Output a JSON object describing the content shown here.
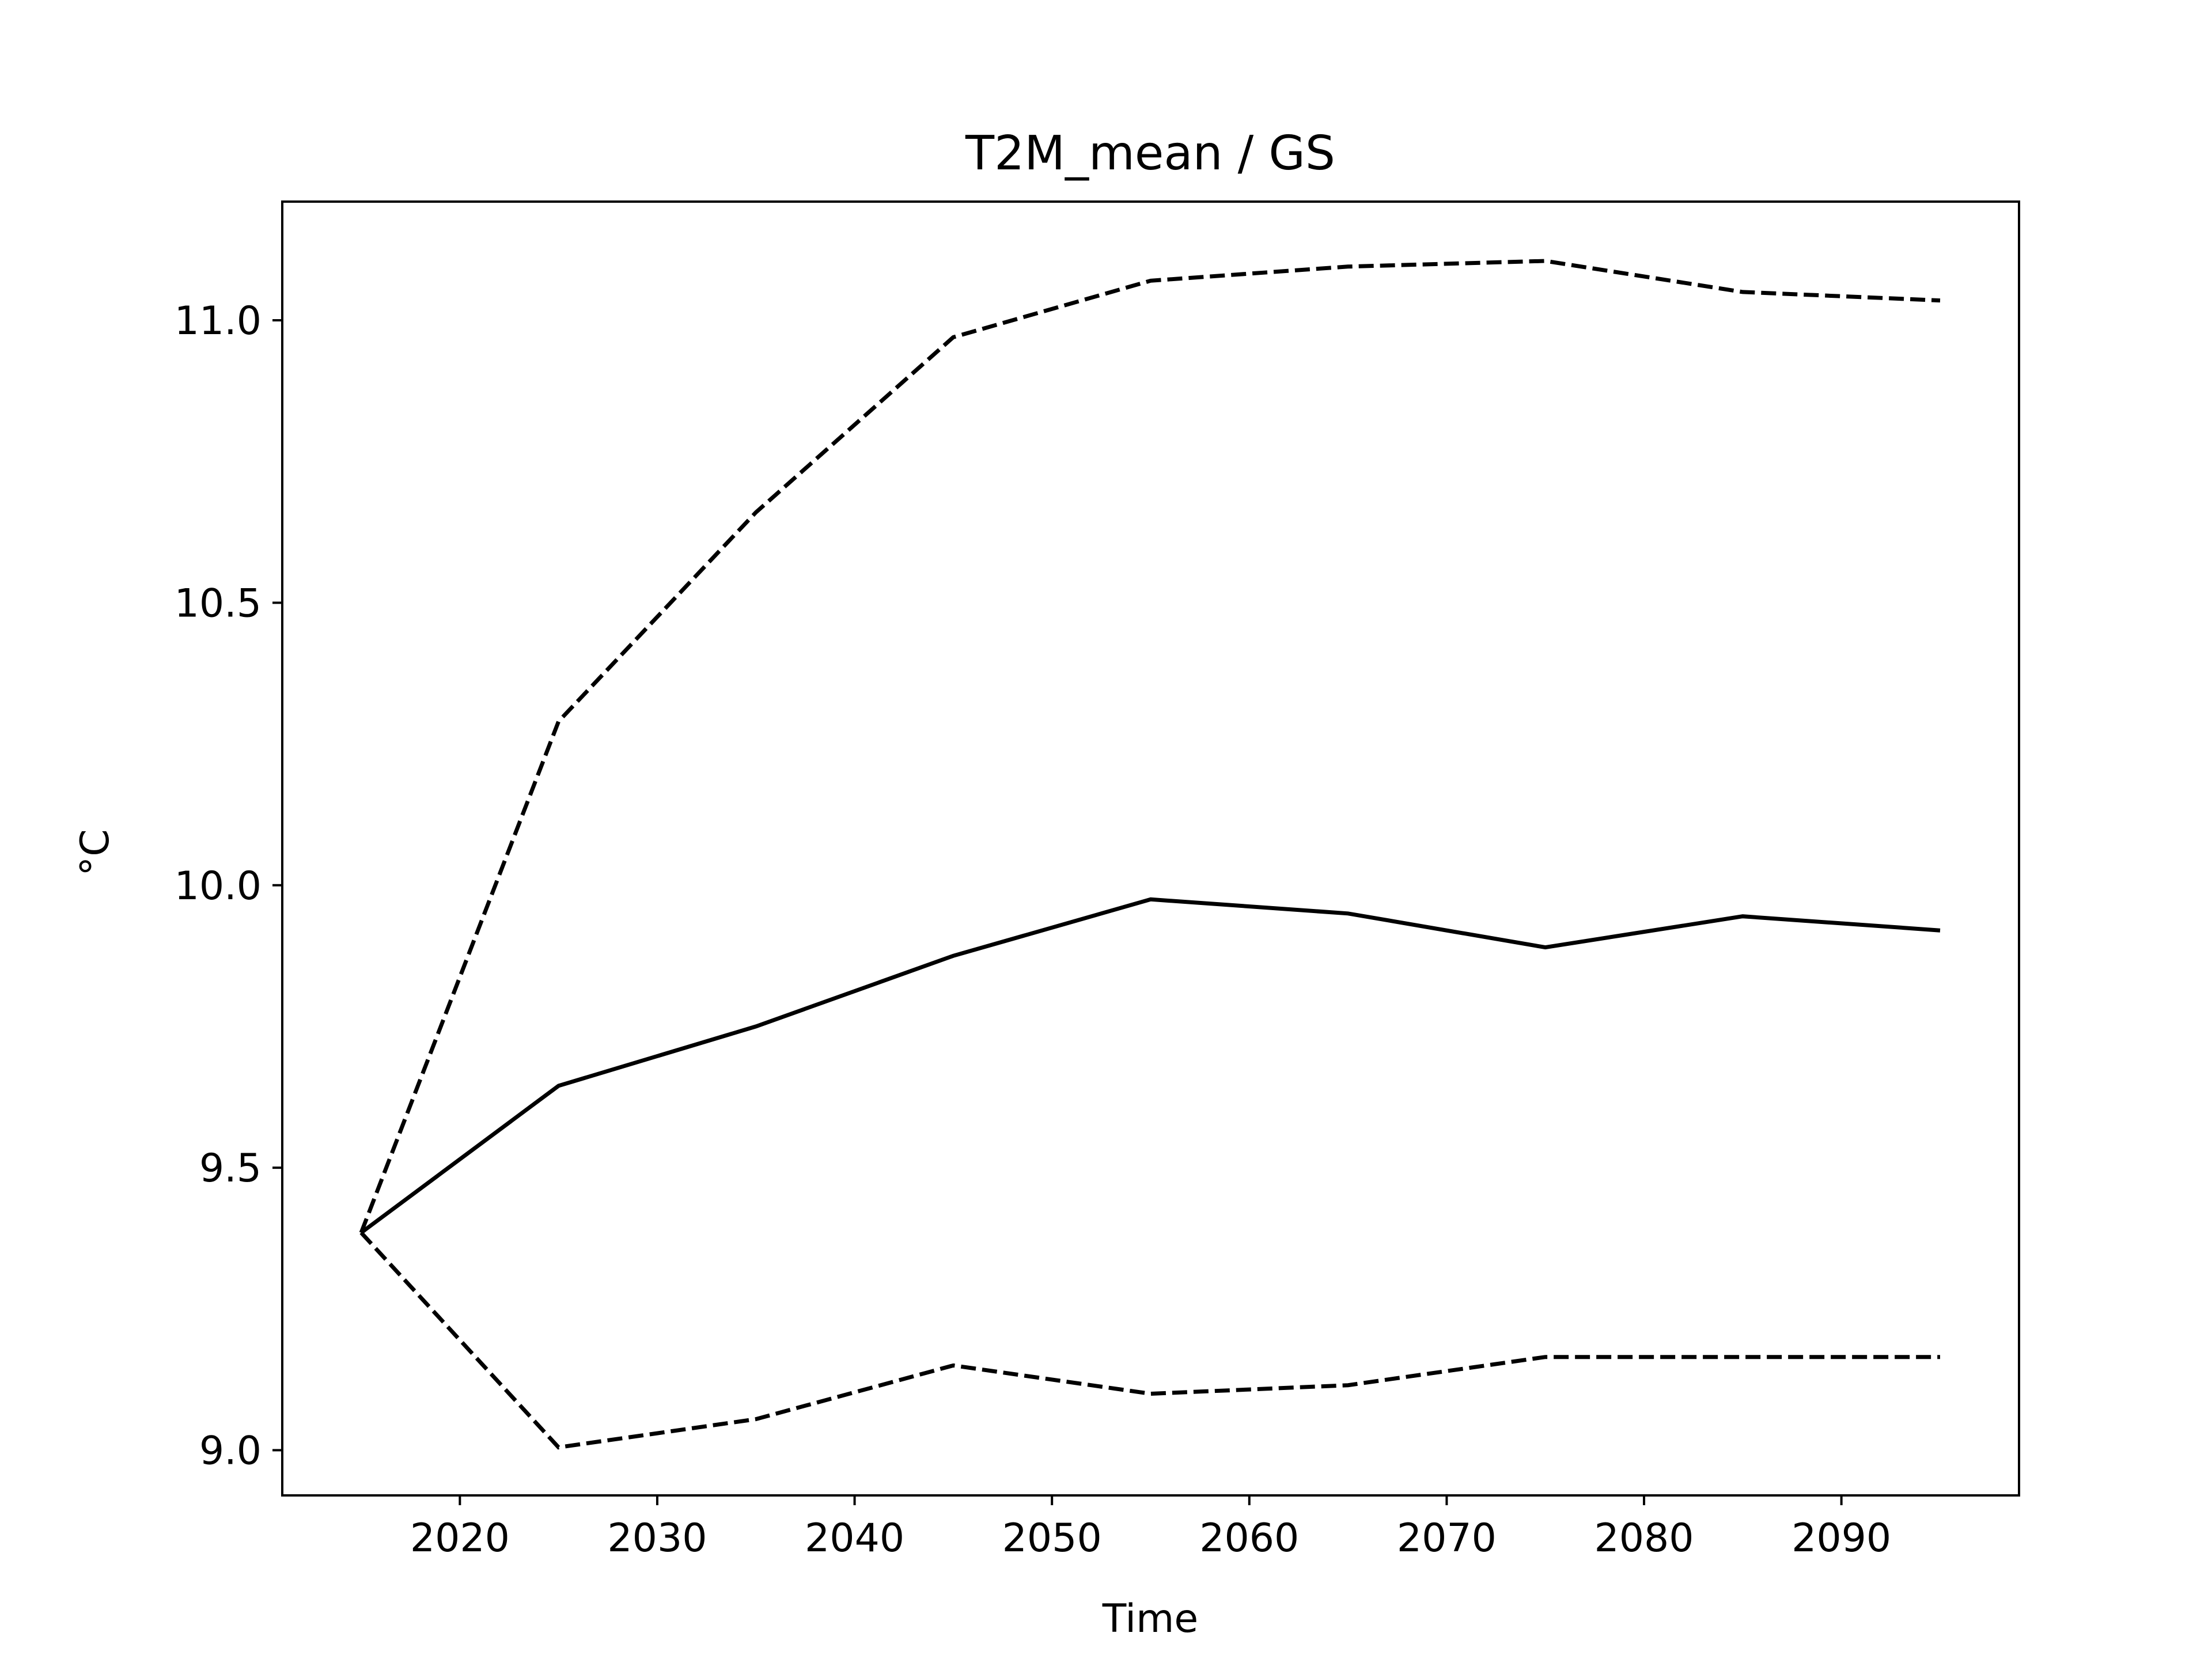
{
  "chart_data": {
    "type": "line",
    "title": "T2M_mean / GS",
    "xlabel": "Time",
    "ylabel": "°C",
    "xlim": [
      2011,
      2099
    ],
    "ylim": [
      8.92,
      11.21
    ],
    "x_ticks": [
      2020,
      2030,
      2040,
      2050,
      2060,
      2070,
      2080,
      2090
    ],
    "y_ticks": [
      9.0,
      9.5,
      10.0,
      10.5,
      11.0
    ],
    "x_tick_labels": [
      "2020",
      "2030",
      "2040",
      "2050",
      "2060",
      "2070",
      "2080",
      "2090"
    ],
    "y_tick_labels": [
      "9.0",
      "9.5",
      "10.0",
      "10.5",
      "11.0"
    ],
    "x": [
      2015,
      2025,
      2035,
      2045,
      2055,
      2065,
      2075,
      2085,
      2095
    ],
    "series": [
      {
        "style": "solid",
        "color": "#000000",
        "values": [
          9.385,
          9.645,
          9.75,
          9.875,
          9.975,
          9.95,
          9.89,
          9.945,
          9.92
        ]
      },
      {
        "style": "dashed",
        "color": "#000000",
        "values": [
          9.385,
          10.29,
          10.66,
          10.97,
          11.07,
          11.095,
          11.105,
          11.05,
          11.035
        ]
      },
      {
        "style": "dashed",
        "color": "#000000",
        "values": [
          9.385,
          9.005,
          9.055,
          9.15,
          9.1,
          9.115,
          9.165,
          9.165,
          9.165
        ]
      }
    ],
    "grid": false,
    "legend": null
  }
}
